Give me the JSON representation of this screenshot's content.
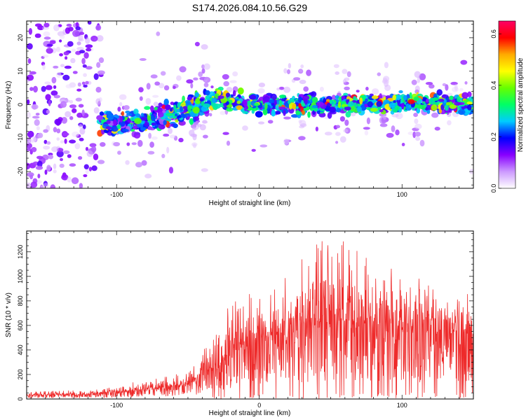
{
  "title": "S174.2026.084.10.56.G29",
  "colors": {
    "snr_line": "#ee2a2a",
    "axis": "#000000",
    "background": "#ffffff"
  },
  "chart_data": [
    {
      "type": "heatmap",
      "name": "spectrogram",
      "xlabel": "Height of straight line (km)",
      "ylabel": "Frequency (Hz)",
      "xlim": [
        -163,
        150
      ],
      "ylim": [
        -25,
        25
      ],
      "xticks": [
        -100,
        0,
        100
      ],
      "yticks": [
        -20,
        -10,
        0,
        10,
        20
      ],
      "ridge": {
        "description_points": [
          {
            "x": -110,
            "y": -5
          },
          {
            "x": -95,
            "y": -6
          },
          {
            "x": -80,
            "y": -5
          },
          {
            "x": -60,
            "y": -3
          },
          {
            "x": -40,
            "y": 0
          },
          {
            "x": -30,
            "y": 2
          },
          {
            "x": 0,
            "y": 0
          },
          {
            "x": 50,
            "y": 0
          },
          {
            "x": 100,
            "y": 0.5
          },
          {
            "x": 150,
            "y": 0
          }
        ]
      },
      "colorbar": {
        "label": "Normalized spectral amplitude",
        "range": [
          0.0,
          0.65
        ],
        "ticks": [
          0.0,
          0.2,
          0.4,
          0.6
        ],
        "tick_labels": [
          "0.0",
          "0.2",
          "0.4",
          "0.6"
        ],
        "colors": [
          "#ffffff",
          "#cc99ff",
          "#8800ff",
          "#0000ff",
          "#00ccff",
          "#00ff66",
          "#66ff00",
          "#ffff00",
          "#ffaa00",
          "#ff0000",
          "#ff0066"
        ]
      }
    },
    {
      "type": "line",
      "name": "snr",
      "xlabel": "Height of straight line (km)",
      "ylabel": "SNR (10 * v/v)",
      "xlim": [
        -163,
        150
      ],
      "ylim": [
        0,
        1370
      ],
      "xticks": [
        -100,
        0,
        100
      ],
      "yticks": [
        0,
        200,
        400,
        600,
        800,
        1000,
        1200
      ],
      "envelope": [
        {
          "x": -163,
          "baseline": 30,
          "peak": 60
        },
        {
          "x": -130,
          "baseline": 30,
          "peak": 70
        },
        {
          "x": -110,
          "baseline": 40,
          "peak": 80
        },
        {
          "x": -90,
          "baseline": 60,
          "peak": 160
        },
        {
          "x": -70,
          "baseline": 80,
          "peak": 180
        },
        {
          "x": -50,
          "baseline": 110,
          "peak": 220
        },
        {
          "x": -35,
          "baseline": 200,
          "peak": 500
        },
        {
          "x": -20,
          "baseline": 350,
          "peak": 800
        },
        {
          "x": 0,
          "baseline": 450,
          "peak": 900
        },
        {
          "x": 20,
          "baseline": 500,
          "peak": 1000
        },
        {
          "x": 40,
          "baseline": 560,
          "peak": 1330
        },
        {
          "x": 60,
          "baseline": 560,
          "peak": 1300
        },
        {
          "x": 80,
          "baseline": 540,
          "peak": 1100
        },
        {
          "x": 100,
          "baseline": 540,
          "peak": 1060
        },
        {
          "x": 120,
          "baseline": 530,
          "peak": 960
        },
        {
          "x": 150,
          "baseline": 530,
          "peak": 850
        }
      ]
    }
  ]
}
